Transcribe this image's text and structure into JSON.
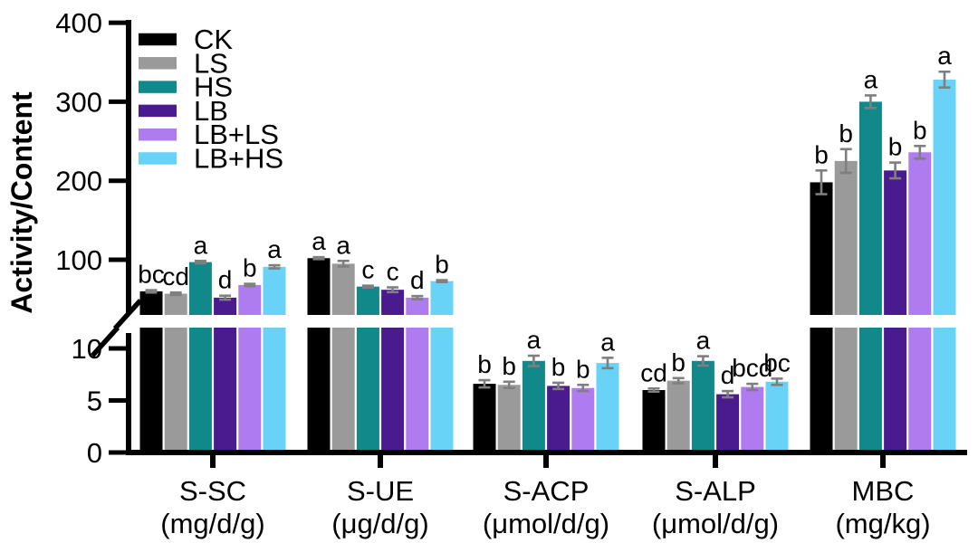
{
  "chart_data": {
    "type": "bar",
    "title": "",
    "xlabel": "",
    "ylabel": "Activity/Content",
    "axis": {
      "broken": true,
      "lower_ticks": [
        0,
        5,
        10
      ],
      "upper_ticks": [
        100,
        200,
        300,
        400
      ],
      "lower_range": [
        0,
        12
      ],
      "upper_range": [
        30,
        400
      ],
      "grid": false,
      "legend_position": "top-left",
      "error_bar_color": "#7f7f7f"
    },
    "categories": [
      {
        "name": "S-SC",
        "unit": "(mg/d/g)"
      },
      {
        "name": "S-UE",
        "unit": "(μg/d/g)"
      },
      {
        "name": "S-ACP",
        "unit": "(μmol/d/g)"
      },
      {
        "name": "S-ALP",
        "unit": "(μmol/d/g)"
      },
      {
        "name": "MBC",
        "unit": "(mg/kg)"
      }
    ],
    "series": [
      {
        "name": "CK",
        "color": "#000000",
        "values": [
          60,
          102,
          6.6,
          6.0,
          198
        ],
        "errors": [
          1.5,
          1.2,
          0.35,
          0.15,
          15
        ],
        "letters": [
          "bc",
          "a",
          "b",
          "cd",
          "b"
        ]
      },
      {
        "name": "LS",
        "color": "#9a9a9a",
        "values": [
          57,
          95,
          6.5,
          6.9,
          225
        ],
        "errors": [
          1.5,
          3.5,
          0.3,
          0.25,
          15
        ],
        "letters": [
          "cd",
          "a",
          "b",
          "b",
          "b"
        ]
      },
      {
        "name": "HS",
        "color": "#11898b",
        "values": [
          97,
          66,
          8.8,
          8.8,
          300
        ],
        "errors": [
          1.5,
          1.2,
          0.5,
          0.45,
          8
        ],
        "letters": [
          "a",
          "c",
          "a",
          "a",
          "a"
        ]
      },
      {
        "name": "LB",
        "color": "#4a1b8e",
        "values": [
          52,
          62,
          6.4,
          5.6,
          213
        ],
        "errors": [
          2.5,
          3.0,
          0.3,
          0.3,
          10
        ],
        "letters": [
          "d",
          "c",
          "b",
          "d",
          "b"
        ]
      },
      {
        "name": "LB+LS",
        "color": "#af7cf0",
        "values": [
          68,
          52,
          6.2,
          6.3,
          236
        ],
        "errors": [
          1.5,
          2.0,
          0.3,
          0.3,
          8
        ],
        "letters": [
          "b",
          "d",
          "b",
          "bcd",
          "b"
        ]
      },
      {
        "name": "LB+HS",
        "color": "#69d2f7",
        "values": [
          91,
          73,
          8.6,
          6.8,
          328
        ],
        "errors": [
          2.0,
          1.2,
          0.5,
          0.3,
          10
        ],
        "letters": [
          "a",
          "b",
          "a",
          "bc",
          "a"
        ]
      }
    ]
  }
}
